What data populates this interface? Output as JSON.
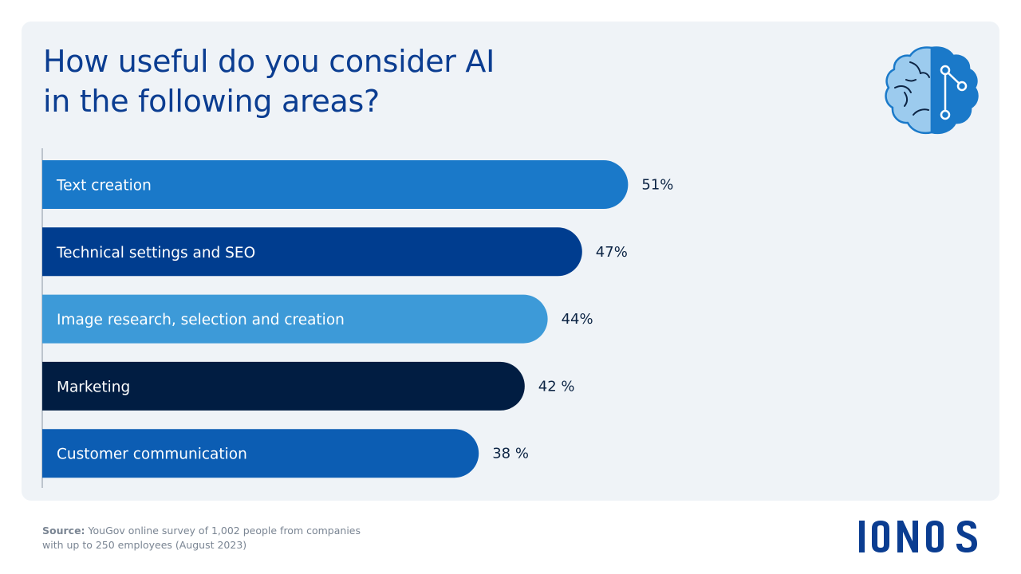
{
  "title": {
    "line1": "How useful do you consider AI",
    "line2": "in the following areas?"
  },
  "icon": "brain-circuit-icon",
  "chart_data": {
    "type": "bar",
    "orientation": "horizontal",
    "categories": [
      "Text creation",
      "Technical settings and SEO",
      "Image research, selection and creation",
      "Marketing",
      "Customer communication"
    ],
    "values": [
      51,
      47,
      44,
      42,
      38
    ],
    "value_labels": [
      "51%",
      "47%",
      "44%",
      "42 %",
      "38 %"
    ],
    "colors": [
      "#1a79c9",
      "#003d8f",
      "#3d9ad8",
      "#011d42",
      "#0c5db3"
    ],
    "unit": "%",
    "xlim": [
      0,
      100
    ],
    "grid": false,
    "legend": "none"
  },
  "source": {
    "label": "Source:",
    "text": "YouGov online survey of 1,002 people from companies with up to 250 employees (August 2023)"
  },
  "brand": {
    "name": "IONOS",
    "color": "#0b3d91"
  }
}
